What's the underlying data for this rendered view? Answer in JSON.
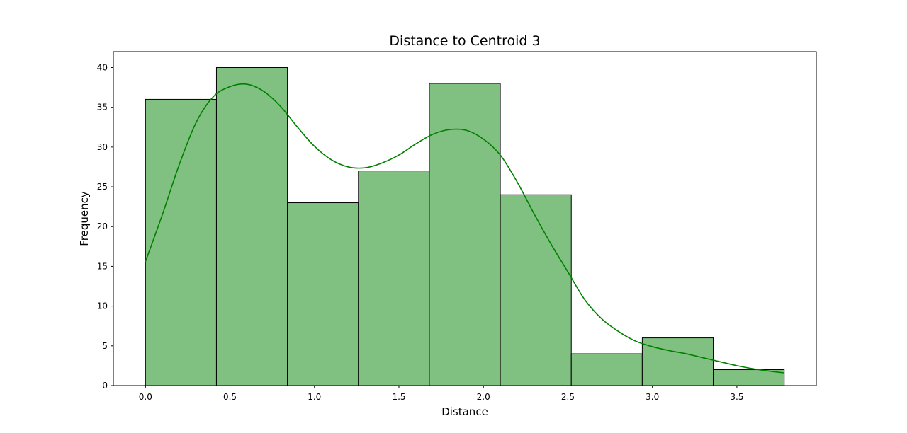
{
  "chart_data": {
    "type": "bar",
    "subtype": "histogram-with-kde",
    "title": "Distance to Centroid 3",
    "xlabel": "Distance",
    "ylabel": "Frequency",
    "bin_edges": [
      0.0,
      0.42,
      0.84,
      1.26,
      1.68,
      2.1,
      2.52,
      2.94,
      3.36,
      3.78
    ],
    "values": [
      36,
      40,
      23,
      27,
      38,
      24,
      4,
      6,
      2
    ],
    "xlim": [
      -0.19,
      3.97
    ],
    "ylim": [
      0,
      42
    ],
    "xticks": [
      0.0,
      0.5,
      1.0,
      1.5,
      2.0,
      2.5,
      3.0,
      3.5
    ],
    "xtick_labels": [
      "0.0",
      "0.5",
      "1.0",
      "1.5",
      "2.0",
      "2.5",
      "3.0",
      "3.5"
    ],
    "yticks": [
      0,
      5,
      10,
      15,
      20,
      25,
      30,
      35,
      40
    ],
    "ytick_labels": [
      "0",
      "5",
      "10",
      "15",
      "20",
      "25",
      "30",
      "35",
      "40"
    ],
    "kde": {
      "x": [
        0.0,
        0.1,
        0.2,
        0.3,
        0.4,
        0.5,
        0.6,
        0.7,
        0.8,
        0.9,
        1.0,
        1.1,
        1.2,
        1.3,
        1.4,
        1.5,
        1.6,
        1.7,
        1.8,
        1.9,
        2.0,
        2.1,
        2.2,
        2.3,
        2.4,
        2.5,
        2.6,
        2.7,
        2.8,
        2.9,
        3.0,
        3.1,
        3.2,
        3.3,
        3.4,
        3.5,
        3.6,
        3.7,
        3.78
      ],
      "y": [
        15.6,
        21.5,
        27.8,
        33.1,
        36.3,
        37.6,
        37.9,
        37.0,
        35.1,
        32.5,
        30.1,
        28.4,
        27.5,
        27.4,
        28.0,
        29.0,
        30.4,
        31.6,
        32.2,
        32.1,
        31.0,
        29.0,
        25.6,
        21.6,
        17.8,
        14.3,
        10.8,
        8.4,
        6.8,
        5.6,
        4.9,
        4.4,
        4.0,
        3.5,
        3.0,
        2.5,
        2.1,
        1.8,
        1.6
      ]
    },
    "bar_color": "#80c080",
    "bar_edge_color": "#000000",
    "kde_color": "#008000",
    "grid": false,
    "legend": false
  }
}
